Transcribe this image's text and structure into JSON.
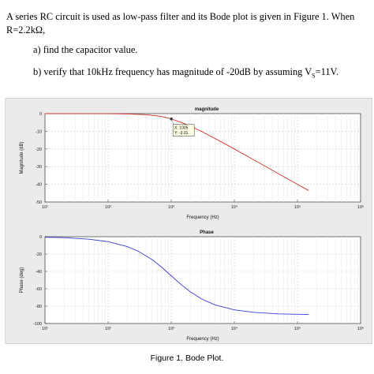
{
  "question": {
    "line1": "A series RC circuit is used as low-pass filter and its Bode plot is given in Figure 1. When",
    "line2": "R=2.2kΩ,",
    "part_a": "a) find  the capacitor value.",
    "part_b": "b) verify that 10kHz frequency has magnitude of -20dB by assuming V",
    "part_b_sub": "S",
    "part_b_end": "=11V."
  },
  "chart_data": [
    {
      "type": "line",
      "title": "magnitude",
      "xlabel": "Frequency (Hz)",
      "ylabel": "Magnitude (dB)",
      "xscale": "log",
      "xlim": [
        10,
        1000000
      ],
      "ylim": [
        -50,
        0
      ],
      "yticks": [
        0,
        -10,
        -20,
        -30,
        -40,
        -50
      ],
      "ytick_labels": [
        "0",
        "-10",
        "-20",
        "-30",
        "-40",
        "-50"
      ],
      "xtick_labels": [
        "10¹",
        "10²",
        "10³",
        "10⁴",
        "10⁵",
        "10⁶"
      ],
      "grid": true,
      "color": "#d0302a",
      "series": [
        {
          "x": [
            10,
            20,
            50,
            100,
            200,
            400,
            700,
            1005,
            1500,
            2000,
            3000,
            5000,
            7000,
            10000,
            20000,
            50000,
            100000,
            150000
          ],
          "y": [
            0,
            0,
            -0.01,
            -0.04,
            -0.17,
            -0.6,
            -1.6,
            -3.01,
            -5.2,
            -7.0,
            -10.0,
            -14.2,
            -17.0,
            -20.0,
            -26.0,
            -34.0,
            -40.0,
            -43.5
          ]
        }
      ],
      "datatip": {
        "x": 1005,
        "y": -3.01,
        "label_x": "X: 1005",
        "label_y": "Y: -3.01"
      }
    },
    {
      "type": "line",
      "title": "Phase",
      "xlabel": "Frequency (Hz)",
      "ylabel": "Phase (deg)",
      "xscale": "log",
      "xlim": [
        10,
        1000000
      ],
      "ylim": [
        -100,
        0
      ],
      "yticks": [
        0,
        -20,
        -40,
        -60,
        -80,
        -100
      ],
      "ytick_labels": [
        "0",
        "-20",
        "-40",
        "-60",
        "-80",
        "-100"
      ],
      "xtick_labels": [
        "10¹",
        "10²",
        "10³",
        "10⁴",
        "10⁵",
        "10⁶"
      ],
      "grid": true,
      "color": "#3b3bd6",
      "series": [
        {
          "x": [
            10,
            20,
            50,
            100,
            200,
            300,
            500,
            700,
            1000,
            1500,
            2000,
            3000,
            5000,
            10000,
            20000,
            50000,
            100000,
            150000
          ],
          "y": [
            -0.6,
            -1.1,
            -2.9,
            -5.7,
            -11.3,
            -16.7,
            -26.5,
            -34.9,
            -45.0,
            -56.3,
            -63.4,
            -71.6,
            -78.7,
            -84.3,
            -87.1,
            -88.9,
            -89.4,
            -89.6
          ]
        }
      ]
    }
  ],
  "caption": "Figure 1. Bode Plot."
}
